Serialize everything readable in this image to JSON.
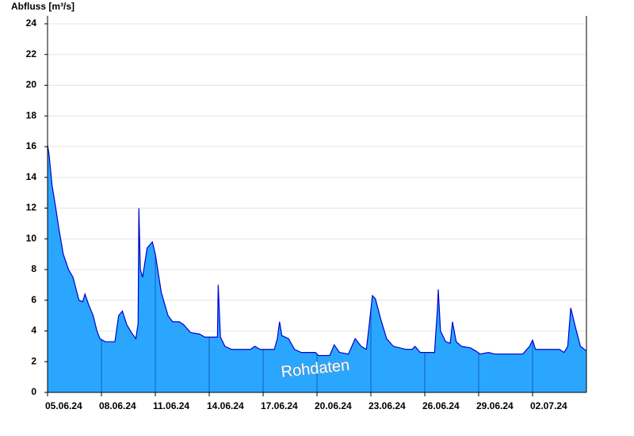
{
  "chart_data": {
    "type": "area",
    "y_label": "Abfluss [m³/s]",
    "annotation": "Rohdaten",
    "color": "#2aa6ff",
    "line_color": "#0000d0",
    "grid": true,
    "x": [
      "2024-06-05T00:00",
      "2024-06-05T02:00",
      "2024-06-05T06:00",
      "2024-06-05T11:00",
      "2024-06-05T15:00",
      "2024-06-05T21:00",
      "2024-06-06T04:00",
      "2024-06-06T10:00",
      "2024-06-06T18:00",
      "2024-06-06T23:00",
      "2024-06-07T02:00",
      "2024-06-07T07:00",
      "2024-06-07T13:00",
      "2024-06-07T18:00",
      "2024-06-07T22:00",
      "2024-06-08T05:00",
      "2024-06-08T18:00",
      "2024-06-08T23:00",
      "2024-06-09T04:00",
      "2024-06-09T10:00",
      "2024-06-09T16:00",
      "2024-06-09T22:00",
      "2024-06-10T01:00",
      "2024-06-10T02:00",
      "2024-06-10T04:00",
      "2024-06-10T07:00",
      "2024-06-10T13:00",
      "2024-06-10T20:00",
      "2024-06-11T00:00",
      "2024-06-11T08:00",
      "2024-06-11T17:00",
      "2024-06-11T23:00",
      "2024-06-12T08:00",
      "2024-06-12T14:00",
      "2024-06-12T23:00",
      "2024-06-13T11:00",
      "2024-06-13T18:00",
      "2024-06-13T22:00",
      "2024-06-14T11:00",
      "2024-06-14T12:00",
      "2024-06-14T15:00",
      "2024-06-14T21:00",
      "2024-06-15T06:00",
      "2024-06-16T07:00",
      "2024-06-16T13:00",
      "2024-06-16T20:00",
      "2024-06-17T15:00",
      "2024-06-17T19:00",
      "2024-06-17T22:00",
      "2024-06-18T01:00",
      "2024-06-18T10:00",
      "2024-06-18T18:00",
      "2024-06-19T03:00",
      "2024-06-19T22:00",
      "2024-06-20T02:00",
      "2024-06-20T17:00",
      "2024-06-20T23:00",
      "2024-06-21T06:00",
      "2024-06-21T18:00",
      "2024-06-22T03:00",
      "2024-06-22T11:00",
      "2024-06-22T18:00",
      "2024-06-22T22:00",
      "2024-06-23T02:00",
      "2024-06-23T06:00",
      "2024-06-23T13:00",
      "2024-06-23T21:00",
      "2024-06-24T06:00",
      "2024-06-24T23:00",
      "2024-06-25T07:00",
      "2024-06-25T11:00",
      "2024-06-25T18:00",
      "2024-06-26T13:00",
      "2024-06-26T17:00",
      "2024-06-26T18:00",
      "2024-06-26T21:00",
      "2024-06-27T04:00",
      "2024-06-27T10:00",
      "2024-06-27T13:00",
      "2024-06-27T18:00",
      "2024-06-28T01:00",
      "2024-06-28T13:00",
      "2024-06-28T20:00",
      "2024-06-29T02:00",
      "2024-06-29T13:00",
      "2024-06-29T21:00",
      "2024-07-01T11:00",
      "2024-07-01T20:00",
      "2024-07-02T00:00",
      "2024-07-02T04:00",
      "2024-07-02T19:00",
      "2024-07-03T12:00",
      "2024-07-03T18:00",
      "2024-07-03T23:00",
      "2024-07-04T03:00",
      "2024-07-04T09:00",
      "2024-07-04T16:00",
      "2024-07-05T00:00"
    ],
    "values": [
      16.1,
      15.5,
      13.5,
      12,
      10.7,
      9,
      8,
      7.5,
      6,
      5.9,
      6.4,
      5.7,
      5,
      4,
      3.5,
      3.3,
      3.3,
      5,
      5.3,
      4.4,
      3.9,
      3.5,
      4.5,
      12,
      8,
      7.5,
      9.4,
      9.8,
      9,
      6.5,
      5,
      4.6,
      4.6,
      4.4,
      3.9,
      3.8,
      3.6,
      3.6,
      3.6,
      7,
      3.6,
      3,
      2.8,
      2.8,
      3,
      2.8,
      2.8,
      3.5,
      4.6,
      3.7,
      3.5,
      2.8,
      2.6,
      2.6,
      2.4,
      2.4,
      3.1,
      2.6,
      2.5,
      3.5,
      3,
      2.8,
      4.5,
      6.3,
      6.1,
      4.8,
      3.5,
      3,
      2.8,
      2.8,
      3,
      2.6,
      2.6,
      5.5,
      6.7,
      4,
      3.3,
      3.2,
      4.6,
      3.3,
      3,
      2.9,
      2.7,
      2.5,
      2.6,
      2.5,
      2.5,
      3,
      3.4,
      2.8,
      2.8,
      2.8,
      2.6,
      3,
      5.5,
      4.3,
      3,
      2.7
    ],
    "xlim": [
      "2024-06-05T00:00",
      "2024-07-05T00:00"
    ],
    "xticks": [
      {
        "value": "2024-06-05T00:00",
        "label": "05.06.24"
      },
      {
        "value": "2024-06-08T00:00",
        "label": "08.06.24"
      },
      {
        "value": "2024-06-11T00:00",
        "label": "11.06.24"
      },
      {
        "value": "2024-06-14T00:00",
        "label": "14.06.24"
      },
      {
        "value": "2024-06-17T00:00",
        "label": "17.06.24"
      },
      {
        "value": "2024-06-20T00:00",
        "label": "20.06.24"
      },
      {
        "value": "2024-06-23T00:00",
        "label": "23.06.24"
      },
      {
        "value": "2024-06-26T00:00",
        "label": "26.06.24"
      },
      {
        "value": "2024-06-29T00:00",
        "label": "29.06.24"
      },
      {
        "value": "2024-07-02T00:00",
        "label": "02.07.24"
      }
    ],
    "ylim": [
      0,
      24
    ],
    "yticks": [
      0,
      2,
      4,
      6,
      8,
      10,
      12,
      14,
      16,
      18,
      20,
      22,
      24
    ]
  }
}
